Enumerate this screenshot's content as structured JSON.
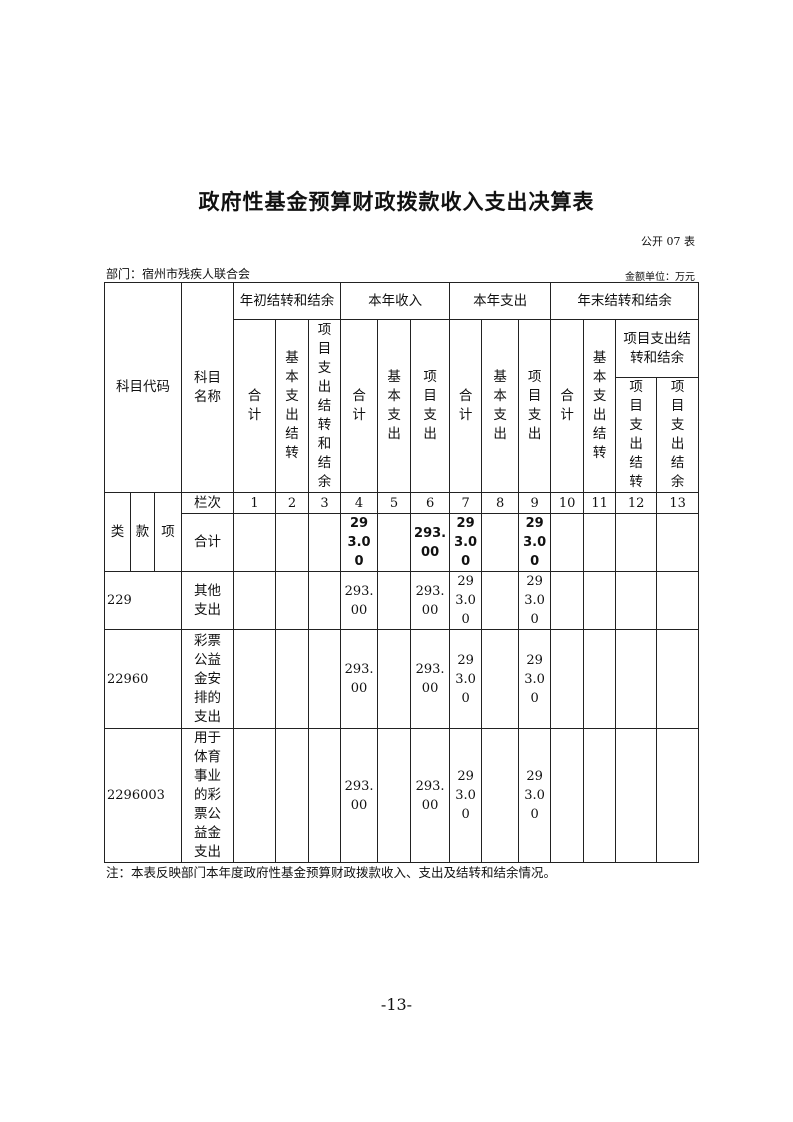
{
  "title": "政府性基金预算财政拨款收入支出决算表",
  "form_no": "公开 07 表",
  "department": "部门：宿州市残疾人联合会",
  "unit": "金额单位：万元",
  "headers": {
    "code": "科目代码",
    "name": "科目名称",
    "group_begin": "年初结转和结余",
    "group_income": "本年收入",
    "group_expense": "本年支出",
    "group_end": "年末结转和结余",
    "total": "合计",
    "basic_carry": "基本支出结转",
    "project_carry_balance": "项目支出结转和结余",
    "basic_exp": "基本支出",
    "project_exp": "项目支出",
    "project_carry": "项目支出结转",
    "project_balance": "项目支出结余",
    "lei": "类",
    "kuan": "款",
    "xiang": "项",
    "column_index_label": "栏次",
    "column_numbers": [
      "1",
      "2",
      "3",
      "4",
      "5",
      "6",
      "7",
      "8",
      "9",
      "10",
      "11",
      "12",
      "13"
    ]
  },
  "total_row": {
    "label": "合计",
    "values": [
      "",
      "",
      "",
      "293.00",
      "",
      "293.00",
      "293.00",
      "",
      "293.00",
      "",
      "",
      "",
      ""
    ]
  },
  "rows": [
    {
      "code": "229",
      "name": "其他支出",
      "values": [
        "",
        "",
        "",
        "293.00",
        "",
        "293.00",
        "293.00",
        "",
        "293.00",
        "",
        "",
        "",
        ""
      ]
    },
    {
      "code": "22960",
      "name": "彩票公益金安排的支出",
      "values": [
        "",
        "",
        "",
        "293.00",
        "",
        "293.00",
        "293.00",
        "",
        "293.00",
        "",
        "",
        "",
        ""
      ]
    },
    {
      "code": "2296003",
      "name": "用于体育事业的彩票公益金支出",
      "values": [
        "",
        "",
        "",
        "293.00",
        "",
        "293.00",
        "293.00",
        "",
        "293.00",
        "",
        "",
        "",
        ""
      ]
    }
  ],
  "note": "注：本表反映部门本年度政府性基金预算财政拨款收入、支出及结转和结余情况。",
  "page_number": "-13-"
}
